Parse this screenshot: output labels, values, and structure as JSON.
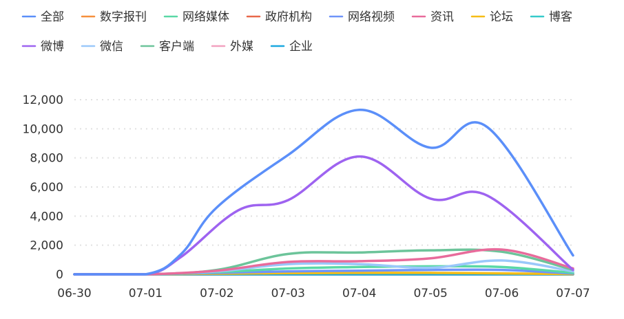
{
  "chart_data": {
    "type": "line",
    "x": [
      "06-30",
      "07-01",
      "07-02",
      "07-03",
      "07-04",
      "07-05",
      "07-06",
      "07-07"
    ],
    "ylim": [
      0,
      12000
    ],
    "yticks": [
      0,
      2000,
      4000,
      6000,
      8000,
      10000,
      12000
    ],
    "ytick_labels": [
      "0",
      "2,000",
      "4,000",
      "6,000",
      "8,000",
      "10,000",
      "12,000"
    ],
    "grid": "horizontal-dotted",
    "legend_position": "top-left",
    "series": [
      {
        "name": "全部",
        "color": "#5b8ff9",
        "points": [
          [
            0,
            0
          ],
          [
            1,
            0
          ],
          [
            1.5,
            1400
          ],
          [
            2,
            4600
          ],
          [
            3,
            8200
          ],
          [
            4,
            11300
          ],
          [
            5,
            8700
          ],
          [
            5.8,
            10100
          ],
          [
            7,
            1300
          ]
        ]
      },
      {
        "name": "数字报刊",
        "color": "#f6903d",
        "points": [
          [
            0,
            0
          ],
          [
            7,
            0
          ]
        ]
      },
      {
        "name": "网络媒体",
        "color": "#5ad8a6",
        "points": [
          [
            0,
            0
          ],
          [
            1,
            0
          ],
          [
            2,
            150
          ],
          [
            3,
            400
          ],
          [
            4,
            500
          ],
          [
            5,
            550
          ],
          [
            6,
            500
          ],
          [
            7,
            100
          ]
        ]
      },
      {
        "name": "政府机构",
        "color": "#e8684a",
        "points": [
          [
            0,
            0
          ],
          [
            7,
            0
          ]
        ]
      },
      {
        "name": "网络视频",
        "color": "#6f94f9",
        "points": [
          [
            0,
            0
          ],
          [
            1,
            0
          ],
          [
            2,
            100
          ],
          [
            3,
            200
          ],
          [
            4,
            250
          ],
          [
            5,
            300
          ],
          [
            6,
            300
          ],
          [
            7,
            50
          ]
        ]
      },
      {
        "name": "资讯",
        "color": "#e86b9b",
        "points": [
          [
            0,
            0
          ],
          [
            1,
            0
          ],
          [
            2,
            250
          ],
          [
            3,
            850
          ],
          [
            4,
            900
          ],
          [
            5,
            1100
          ],
          [
            6,
            1700
          ],
          [
            7,
            400
          ]
        ]
      },
      {
        "name": "论坛",
        "color": "#f6bd16",
        "points": [
          [
            0,
            0
          ],
          [
            1,
            0
          ],
          [
            3,
            80
          ],
          [
            5,
            100
          ],
          [
            7,
            20
          ]
        ]
      },
      {
        "name": "博客",
        "color": "#36cbcb",
        "points": [
          [
            0,
            0
          ],
          [
            7,
            0
          ]
        ]
      },
      {
        "name": "微博",
        "color": "#9e63f0",
        "points": [
          [
            0,
            0
          ],
          [
            1,
            0
          ],
          [
            1.5,
            1200
          ],
          [
            2.3,
            4400
          ],
          [
            3,
            5100
          ],
          [
            4,
            8100
          ],
          [
            5,
            5200
          ],
          [
            5.8,
            5400
          ],
          [
            7,
            300
          ]
        ]
      },
      {
        "name": "微信",
        "color": "#9ac8fa",
        "points": [
          [
            0,
            0
          ],
          [
            1,
            0
          ],
          [
            2,
            200
          ],
          [
            3,
            700
          ],
          [
            4,
            700
          ],
          [
            5,
            450
          ],
          [
            6,
            950
          ],
          [
            7,
            200
          ]
        ]
      },
      {
        "name": "客户端",
        "color": "#6cc49a",
        "points": [
          [
            0,
            0
          ],
          [
            1,
            0
          ],
          [
            2,
            300
          ],
          [
            3,
            1400
          ],
          [
            4,
            1500
          ],
          [
            5,
            1650
          ],
          [
            6,
            1550
          ],
          [
            7,
            300
          ]
        ]
      },
      {
        "name": "外媒",
        "color": "#f2a1bf",
        "points": [
          [
            0,
            0
          ],
          [
            7,
            0
          ]
        ]
      },
      {
        "name": "企业",
        "color": "#1aa8e0",
        "points": [
          [
            0,
            0
          ],
          [
            7,
            0
          ]
        ]
      }
    ]
  }
}
